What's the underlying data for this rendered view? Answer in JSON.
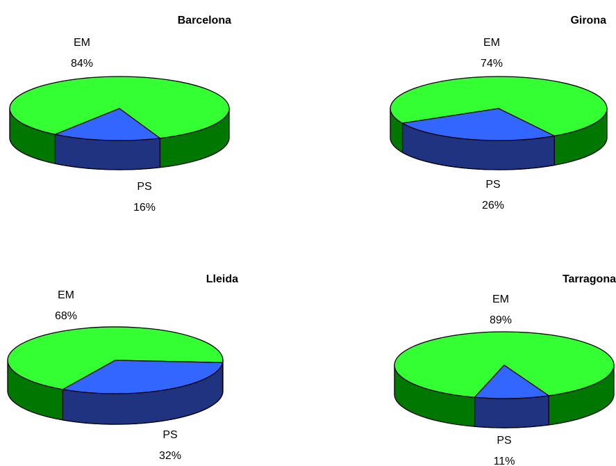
{
  "chart_data": [
    {
      "type": "pie",
      "title": "Barcelona",
      "slices": [
        {
          "label": "EM",
          "value": 84,
          "display": "84%"
        },
        {
          "label": "PS",
          "value": 16,
          "display": "16%"
        }
      ]
    },
    {
      "type": "pie",
      "title": "Girona",
      "slices": [
        {
          "label": "EM",
          "value": 74,
          "display": "74%"
        },
        {
          "label": "PS",
          "value": 26,
          "display": "26%"
        }
      ]
    },
    {
      "type": "pie",
      "title": "Lleida",
      "slices": [
        {
          "label": "EM",
          "value": 68,
          "display": "68%"
        },
        {
          "label": "PS",
          "value": 32,
          "display": "32%"
        }
      ]
    },
    {
      "type": "pie",
      "title": "Tarragona",
      "slices": [
        {
          "label": "EM",
          "value": 89,
          "display": "89%"
        },
        {
          "label": "PS",
          "value": 11,
          "display": "11%"
        }
      ]
    }
  ],
  "colors": {
    "EM_top": "#33ff33",
    "EM_side": "#007700",
    "PS_top": "#3366ff",
    "PS_side": "#1f3380",
    "outline": "#000000"
  }
}
